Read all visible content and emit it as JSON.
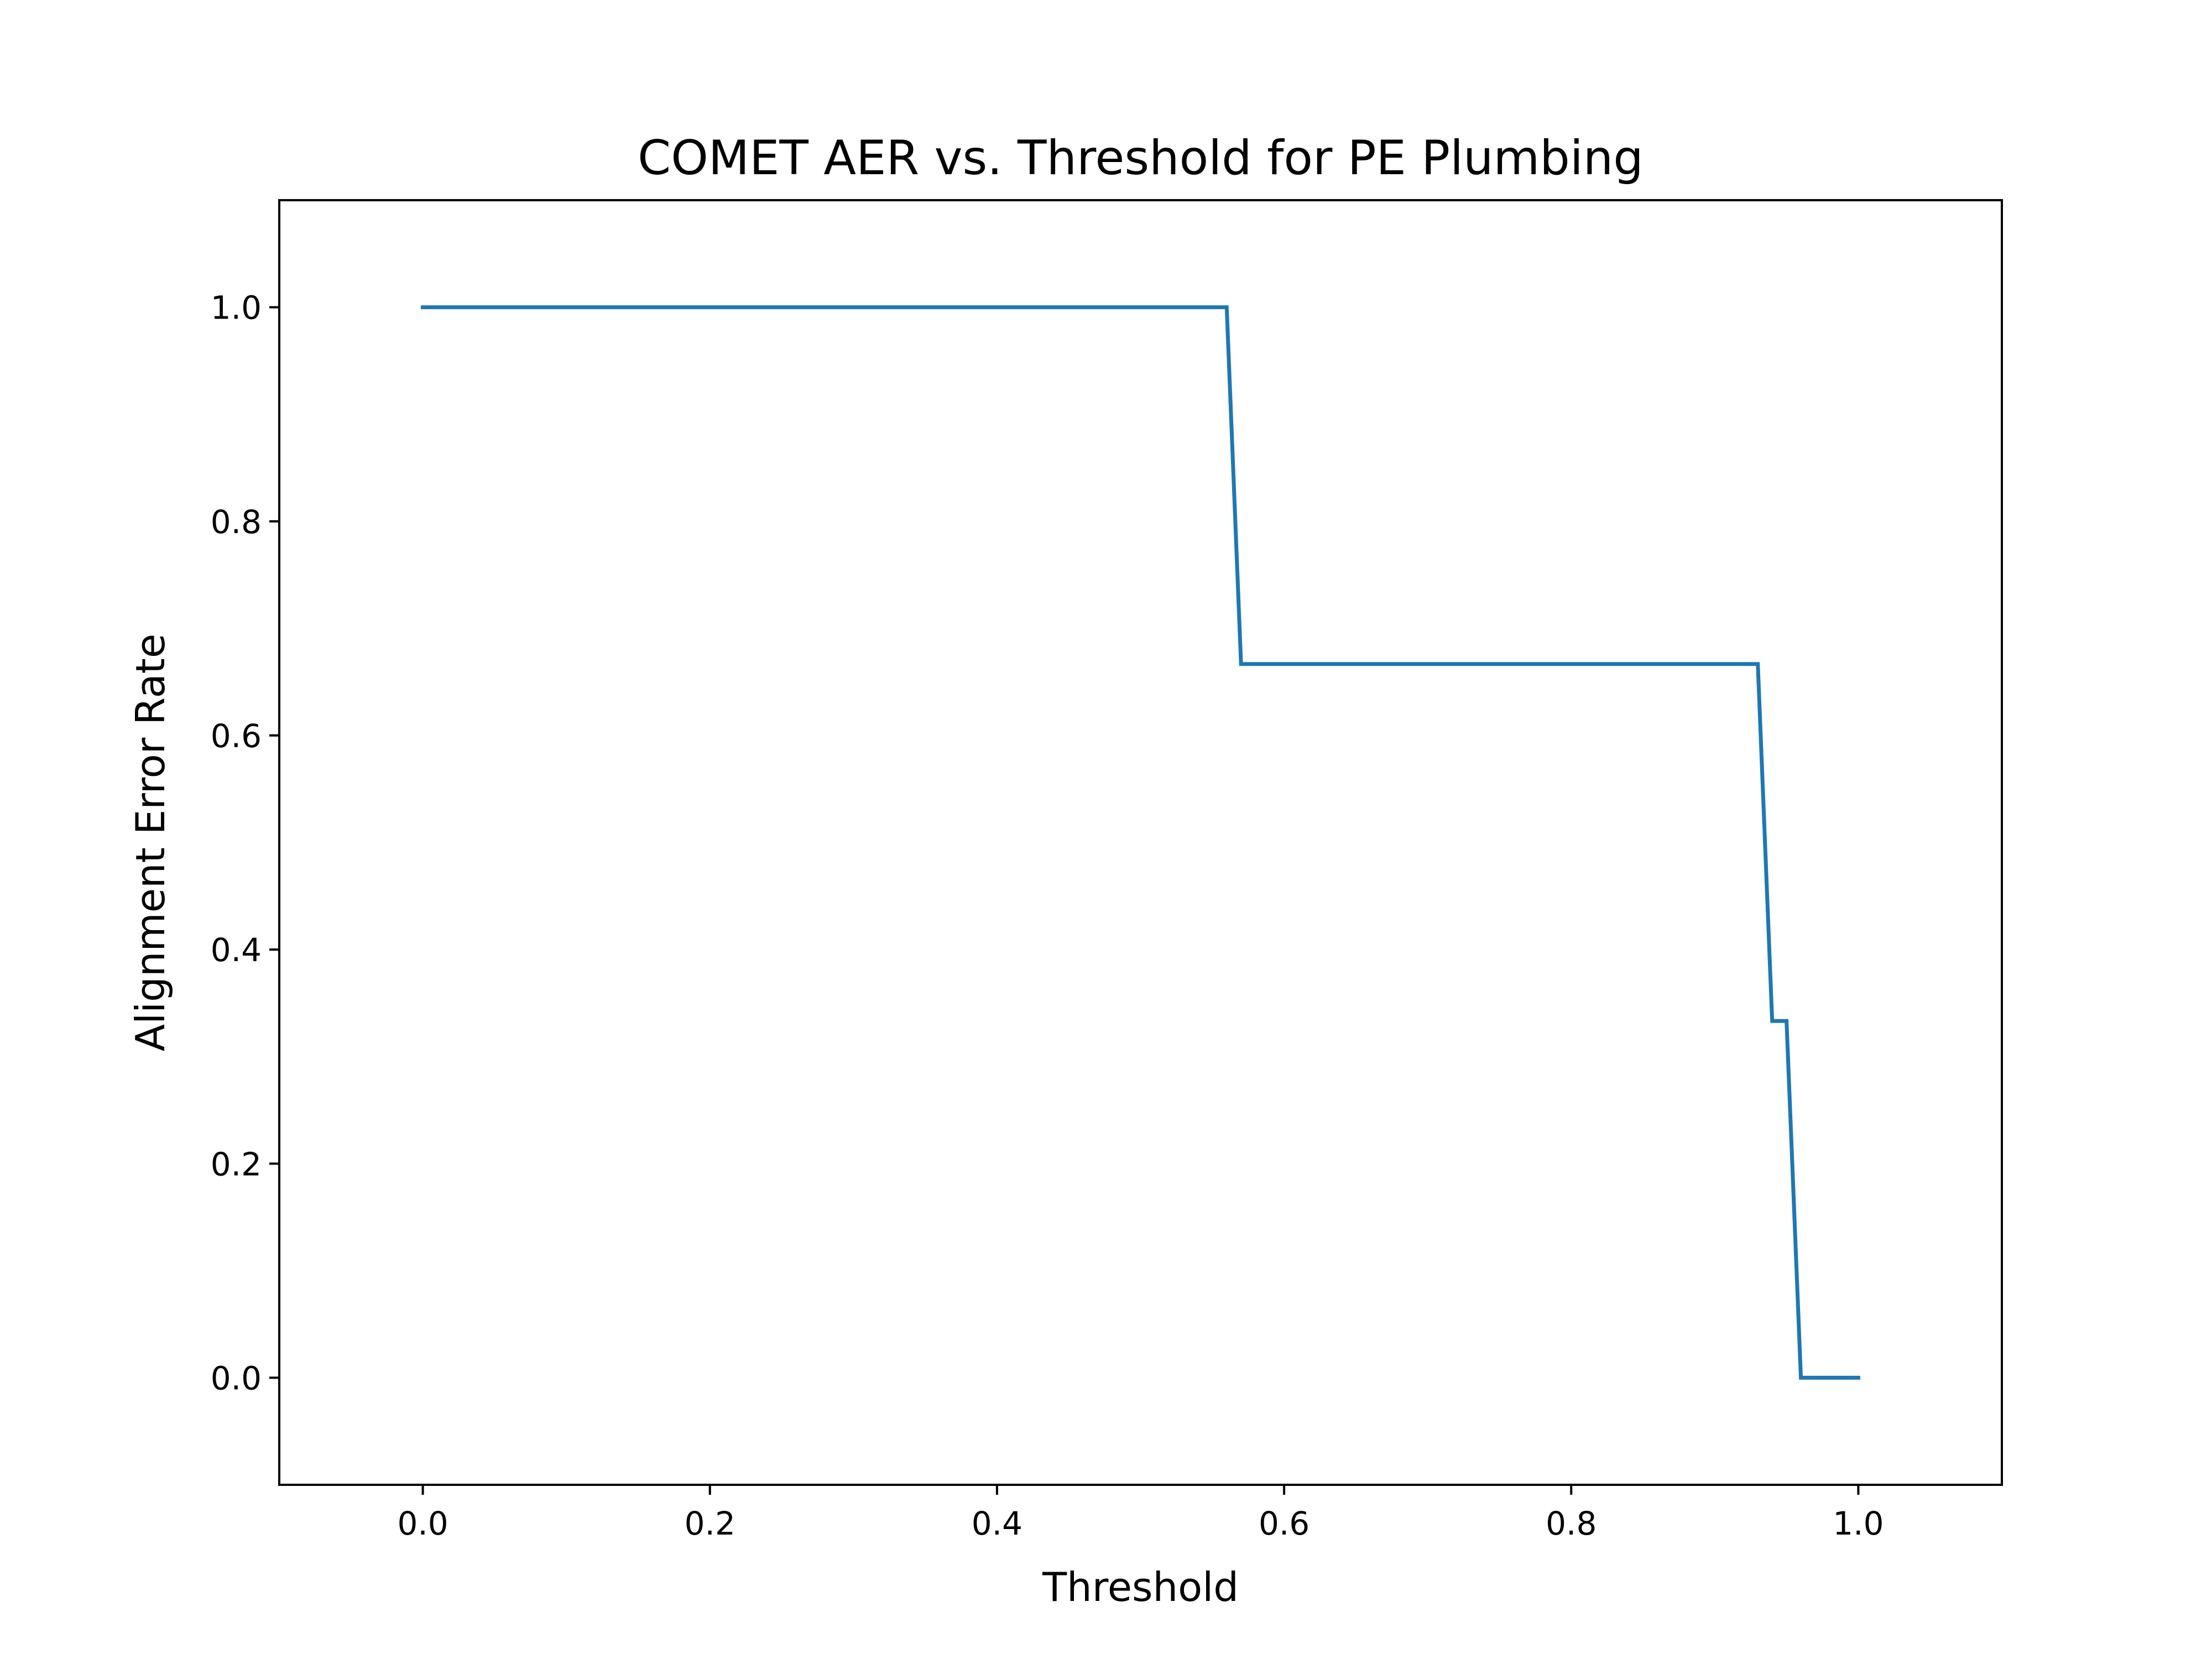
{
  "chart_data": {
    "type": "line",
    "title": "COMET AER vs. Threshold for PE Plumbing",
    "xlabel": "Threshold",
    "ylabel": "Alignment Error Rate",
    "xlim": [
      -0.1,
      1.1
    ],
    "ylim": [
      -0.1,
      1.1
    ],
    "xticks": [
      "0.0",
      "0.2",
      "0.4",
      "0.6",
      "0.8",
      "1.0"
    ],
    "yticks": [
      "0.0",
      "0.2",
      "0.4",
      "0.6",
      "0.8",
      "1.0"
    ],
    "grid": false,
    "series": [
      {
        "color": "#1f77b4",
        "x": [
          0.0,
          0.56,
          0.57,
          0.93,
          0.94,
          0.95,
          0.96,
          1.0
        ],
        "y": [
          1.0,
          1.0,
          0.6667,
          0.6667,
          0.3333,
          0.3333,
          0.0,
          0.0
        ]
      }
    ]
  }
}
